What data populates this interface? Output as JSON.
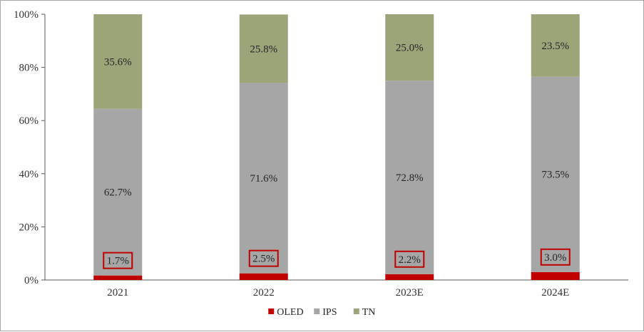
{
  "chart_data": {
    "type": "bar",
    "stacked": true,
    "categories": [
      "2021",
      "2022",
      "2023E",
      "2024E"
    ],
    "series": [
      {
        "name": "OLED",
        "color": "#c00000",
        "values": [
          1.7,
          2.5,
          2.2,
          3.0
        ],
        "labels": [
          "1.7%",
          "2.5%",
          "2.2%",
          "3.0%"
        ]
      },
      {
        "name": "IPS",
        "color": "#a6a6a6",
        "values": [
          62.7,
          71.6,
          72.8,
          73.5
        ],
        "labels": [
          "62.7%",
          "71.6%",
          "72.8%",
          "73.5%"
        ]
      },
      {
        "name": "TN",
        "color": "#9ca47a",
        "values": [
          35.6,
          25.8,
          25.0,
          23.5
        ],
        "labels": [
          "35.6%",
          "25.8%",
          "25.0%",
          "23.5%"
        ]
      }
    ],
    "ylim": [
      0,
      100
    ],
    "yticks": [
      "0%",
      "20%",
      "40%",
      "60%",
      "80%",
      "100%"
    ],
    "yticks_values": [
      0,
      20,
      40,
      60,
      80,
      100
    ],
    "boxed_series": "OLED",
    "legend_position": "bottom",
    "grid": false
  }
}
